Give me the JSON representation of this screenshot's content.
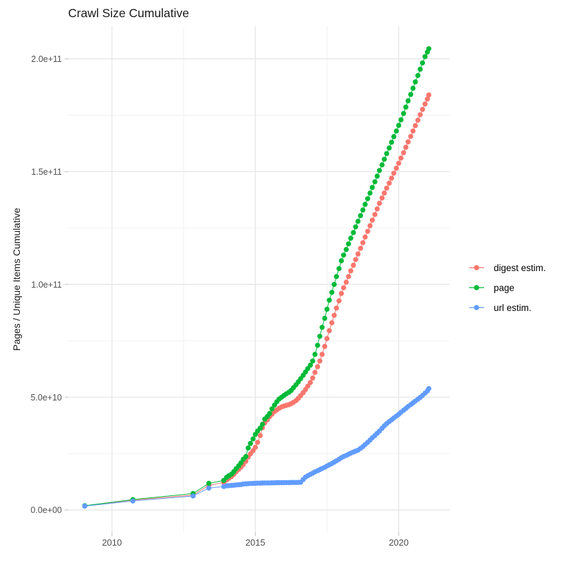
{
  "chart_data": {
    "type": "scatter",
    "title": "Crawl Size Cumulative",
    "xlabel": "",
    "ylabel": "Pages / Unique Items Cumulative",
    "legend_position": "right",
    "grid": true,
    "values_unit": "1e9",
    "xlim": [
      2008.47,
      2021.78
    ],
    "ylim": [
      -10,
      214.5
    ],
    "x_axis": {
      "ticks": [
        {
          "value": 2010,
          "label": "2010"
        },
        {
          "value": 2015,
          "label": "2015"
        },
        {
          "value": 2020,
          "label": "2020"
        }
      ],
      "minor": [
        2012.5,
        2017.5
      ]
    },
    "y_axis": {
      "ticks": [
        {
          "value": 0,
          "label": "0.0e+00"
        },
        {
          "value": 50,
          "label": "5.0e+10"
        },
        {
          "value": 100,
          "label": "1.0e+11"
        },
        {
          "value": 150,
          "label": "1.5e+11"
        },
        {
          "value": 200,
          "label": "2.0e+11"
        }
      ],
      "minor": [
        25,
        75,
        125,
        175
      ]
    },
    "x": [
      2009.05,
      2010.73,
      2012.83,
      2013.38,
      2013.9,
      2014.0,
      2014.08,
      2014.17,
      2014.25,
      2014.33,
      2014.42,
      2014.5,
      2014.58,
      2014.67,
      2014.75,
      2014.83,
      2014.92,
      2015.0,
      2015.08,
      2015.17,
      2015.25,
      2015.33,
      2015.42,
      2015.5,
      2015.58,
      2015.67,
      2015.75,
      2015.83,
      2015.92,
      2016.0,
      2016.08,
      2016.17,
      2016.25,
      2016.33,
      2016.42,
      2016.5,
      2016.58,
      2016.67,
      2016.75,
      2016.83,
      2016.92,
      2017.0,
      2017.08,
      2017.17,
      2017.25,
      2017.33,
      2017.42,
      2017.5,
      2017.58,
      2017.67,
      2017.75,
      2017.83,
      2017.92,
      2018.0,
      2018.08,
      2018.17,
      2018.25,
      2018.33,
      2018.42,
      2018.5,
      2018.58,
      2018.67,
      2018.75,
      2018.83,
      2018.92,
      2019.0,
      2019.08,
      2019.17,
      2019.25,
      2019.33,
      2019.42,
      2019.5,
      2019.58,
      2019.67,
      2019.75,
      2019.83,
      2019.92,
      2020.0,
      2020.08,
      2020.17,
      2020.25,
      2020.33,
      2020.42,
      2020.5,
      2020.58,
      2020.67,
      2020.75,
      2020.83,
      2020.92,
      2021.0,
      2021.05
    ],
    "series": [
      {
        "name": "digest estim.",
        "color": "#F8766D",
        "values": [
          1.8,
          4.4,
          6.6,
          10.9,
          12.2,
          13.3,
          14.0,
          14.8,
          15.8,
          16.9,
          18.0,
          19.0,
          20.2,
          21.6,
          23.5,
          24.9,
          26.3,
          27.8,
          30.0,
          33.0,
          36.5,
          38.6,
          40.0,
          41.4,
          42.5,
          43.6,
          44.4,
          45.1,
          45.7,
          46.1,
          46.4,
          46.7,
          47.1,
          47.7,
          48.5,
          49.5,
          50.7,
          52.0,
          53.4,
          54.9,
          56.5,
          58.5,
          61.0,
          63.5,
          66.0,
          69.0,
          72.5,
          76.0,
          79.5,
          83.0,
          86.3,
          89.5,
          92.7,
          96.0,
          98.5,
          101.0,
          103.5,
          106.0,
          108.5,
          111.0,
          113.5,
          116.0,
          118.5,
          121.0,
          123.5,
          126.0,
          128.5,
          131.0,
          133.5,
          136.0,
          138.3,
          140.5,
          142.7,
          144.9,
          147.1,
          149.3,
          151.5,
          153.7,
          156.0,
          158.4,
          160.8,
          163.2,
          165.6,
          168.0,
          170.4,
          172.8,
          175.2,
          177.6,
          180.0,
          182.2,
          184.0
        ]
      },
      {
        "name": "page",
        "color": "#00BA38",
        "values": [
          1.9,
          4.6,
          7.3,
          11.8,
          13.1,
          14.5,
          15.2,
          15.9,
          17.0,
          18.3,
          19.6,
          20.9,
          22.5,
          23.7,
          27.5,
          29.5,
          31.5,
          33.5,
          35.0,
          36.3,
          38.0,
          40.3,
          41.5,
          42.8,
          44.8,
          46.5,
          48.0,
          49.2,
          50.0,
          50.8,
          51.5,
          52.2,
          53.0,
          54.2,
          55.5,
          56.8,
          58.2,
          59.7,
          61.2,
          62.7,
          64.2,
          66.0,
          69.0,
          73.0,
          77.0,
          81.0,
          85.0,
          89.0,
          93.0,
          96.5,
          100.0,
          103.5,
          107.0,
          110.5,
          113.0,
          115.5,
          118.0,
          120.5,
          123.0,
          125.5,
          128.0,
          130.5,
          133.0,
          135.5,
          138.0,
          140.5,
          143.0,
          145.5,
          148.0,
          150.5,
          153.0,
          155.5,
          158.0,
          160.5,
          163.0,
          165.5,
          168.0,
          170.5,
          173.0,
          175.8,
          178.6,
          181.4,
          184.2,
          187.0,
          189.8,
          192.6,
          195.4,
          198.2,
          201.0,
          203.0,
          204.5
        ]
      },
      {
        "name": "url estim.",
        "color": "#619CFF",
        "values": [
          1.7,
          4.0,
          6.2,
          9.7,
          10.4,
          10.7,
          10.8,
          10.9,
          11.0,
          11.1,
          11.2,
          11.3,
          11.5,
          11.6,
          11.7,
          11.75,
          11.8,
          11.85,
          11.9,
          11.9,
          11.95,
          12.0,
          12.0,
          12.0,
          12.05,
          12.05,
          12.1,
          12.1,
          12.1,
          12.1,
          12.15,
          12.15,
          12.2,
          12.2,
          12.2,
          12.25,
          12.3,
          13.5,
          14.6,
          15.2,
          15.8,
          16.3,
          16.9,
          17.4,
          17.9,
          18.4,
          18.9,
          19.5,
          20.0,
          20.6,
          21.2,
          21.8,
          22.5,
          23.2,
          23.7,
          24.2,
          24.7,
          25.2,
          25.7,
          26.1,
          26.5,
          27.3,
          28.1,
          29.0,
          30.0,
          31.0,
          32.0,
          33.0,
          34.0,
          35.0,
          36.2,
          37.3,
          38.3,
          39.2,
          40.0,
          40.8,
          41.6,
          42.4,
          43.3,
          44.2,
          45.0,
          45.9,
          46.7,
          47.5,
          48.3,
          49.1,
          49.9,
          50.8,
          51.8,
          52.8,
          53.8
        ]
      }
    ],
    "style": {
      "grid_major": "#e4e4e4",
      "grid_minor": "#f1f1f1",
      "tick_color": "#c8c8c8",
      "tick_label_color": "#4d4d4d",
      "point_radius": 3.7
    }
  }
}
